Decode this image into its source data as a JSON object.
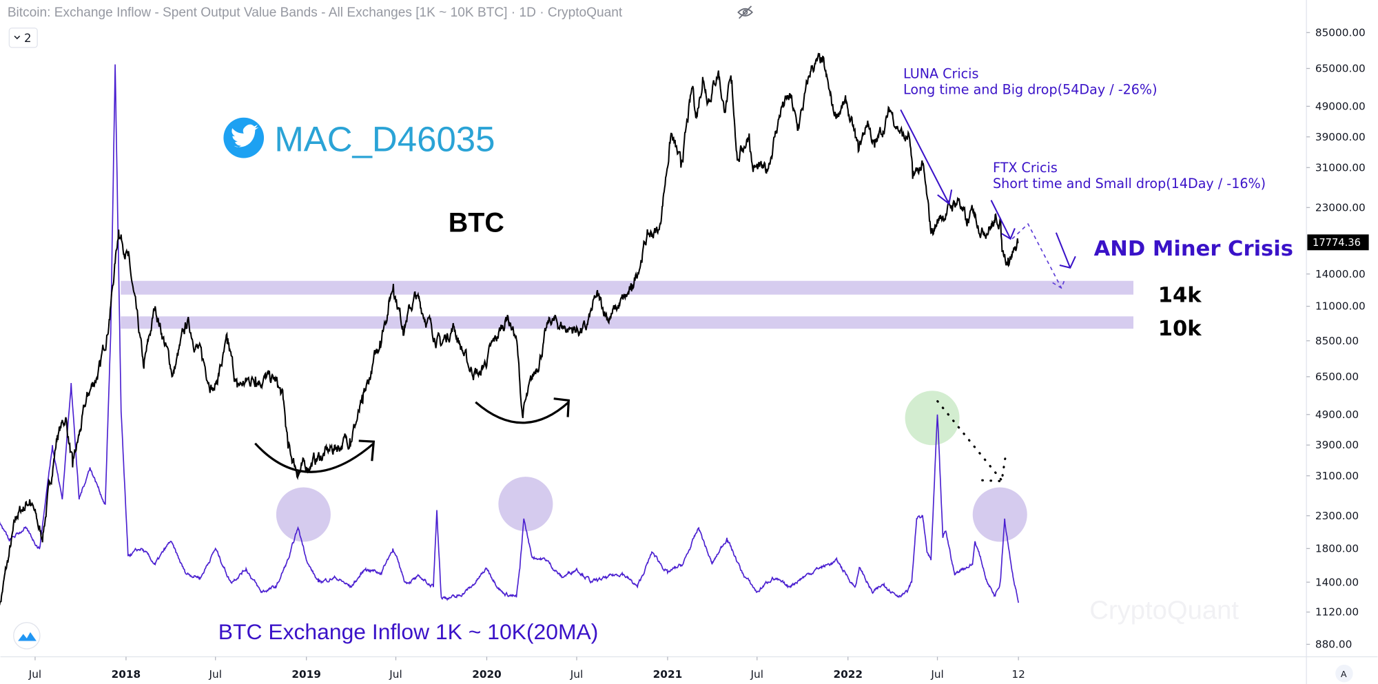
{
  "header": {
    "title": "Bitcoin: Exchange Inflow - Spent Output Value Bands - All Exchanges [1K ~ 10K BTC] · 1D · CryptoQuant",
    "collapse_label": "2",
    "hide_icon": "eye-slash-icon"
  },
  "colors": {
    "price": "#000000",
    "inflow": "#4a1fd0",
    "band": "#d6ccef",
    "annotation": "#3a12c8",
    "twitter": "#1da1f2",
    "green_highlight": "#d3edd0",
    "purple_highlight": "#d5cbee"
  },
  "chart_data": {
    "type": "line",
    "title": "Bitcoin: Exchange Inflow - Spent Output Value Bands - All Exchanges [1K ~ 10K BTC] · 1D · CryptoQuant",
    "y_scale": "log",
    "ylim": [
      700,
      110000
    ],
    "grid": false,
    "y_ticks": [
      "85000.00",
      "65000.00",
      "49000.00",
      "39000.00",
      "31000.00",
      "23000.00",
      "14000.00",
      "11000.00",
      "8500.00",
      "6500.00",
      "4900.00",
      "3900.00",
      "3100.00",
      "2300.00",
      "1800.00",
      "1400.00",
      "1120.00",
      "880.00"
    ],
    "last_price_label": "17774.36",
    "last_price": 17774.36,
    "x_ticks": [
      {
        "date": "2017-07-01",
        "label": "Jul"
      },
      {
        "date": "2018-01-01",
        "label": "2018"
      },
      {
        "date": "2018-07-01",
        "label": "Jul"
      },
      {
        "date": "2019-01-01",
        "label": "2019"
      },
      {
        "date": "2019-07-01",
        "label": "Jul"
      },
      {
        "date": "2020-01-01",
        "label": "2020"
      },
      {
        "date": "2020-07-01",
        "label": "Jul"
      },
      {
        "date": "2021-01-01",
        "label": "2021"
      },
      {
        "date": "2021-07-01",
        "label": "Jul"
      },
      {
        "date": "2022-01-01",
        "label": "2022"
      },
      {
        "date": "2022-07-01",
        "label": "Jul"
      },
      {
        "date": "2022-12-12",
        "label": "12"
      }
    ],
    "series": [
      {
        "key": "price",
        "points": [
          [
            "2017-04-20",
            1180
          ],
          [
            "2017-05-25",
            2300
          ],
          [
            "2017-06-20",
            2600
          ],
          [
            "2017-07-15",
            1950
          ],
          [
            "2017-08-15",
            4200
          ],
          [
            "2017-09-01",
            4800
          ],
          [
            "2017-09-15",
            3300
          ],
          [
            "2017-10-15",
            5600
          ],
          [
            "2017-11-10",
            7000
          ],
          [
            "2017-11-28",
            10000
          ],
          [
            "2017-12-17",
            19500
          ],
          [
            "2018-01-05",
            16000
          ],
          [
            "2018-02-06",
            6900
          ],
          [
            "2018-03-01",
            11000
          ],
          [
            "2018-04-06",
            6600
          ],
          [
            "2018-05-05",
            9800
          ],
          [
            "2018-06-28",
            5900
          ],
          [
            "2018-07-25",
            8300
          ],
          [
            "2018-08-14",
            6000
          ],
          [
            "2018-09-20",
            6500
          ],
          [
            "2018-10-30",
            6300
          ],
          [
            "2018-11-15",
            5500
          ],
          [
            "2018-11-25",
            3800
          ],
          [
            "2018-12-15",
            3200
          ],
          [
            "2019-01-20",
            3500
          ],
          [
            "2019-02-25",
            3800
          ],
          [
            "2019-03-30",
            4100
          ],
          [
            "2019-04-25",
            5300
          ],
          [
            "2019-05-30",
            8500
          ],
          [
            "2019-06-26",
            13000
          ],
          [
            "2019-07-15",
            9500
          ],
          [
            "2019-08-10",
            11800
          ],
          [
            "2019-09-30",
            8200
          ],
          [
            "2019-10-26",
            9500
          ],
          [
            "2019-11-25",
            7000
          ],
          [
            "2019-12-18",
            6600
          ],
          [
            "2020-02-12",
            10300
          ],
          [
            "2020-03-01",
            8600
          ],
          [
            "2020-03-13",
            4900
          ],
          [
            "2020-04-10",
            6900
          ],
          [
            "2020-05-08",
            9900
          ],
          [
            "2020-06-15",
            9300
          ],
          [
            "2020-07-20",
            9200
          ],
          [
            "2020-08-10",
            11800
          ],
          [
            "2020-09-05",
            10100
          ],
          [
            "2020-10-20",
            12300
          ],
          [
            "2020-11-20",
            18500
          ],
          [
            "2020-12-15",
            19500
          ],
          [
            "2021-01-08",
            40000
          ],
          [
            "2021-01-28",
            31000
          ],
          [
            "2021-02-21",
            57000
          ],
          [
            "2021-02-28",
            45000
          ],
          [
            "2021-03-13",
            61000
          ],
          [
            "2021-03-25",
            52000
          ],
          [
            "2021-04-14",
            64000
          ],
          [
            "2021-04-25",
            48000
          ],
          [
            "2021-05-10",
            58000
          ],
          [
            "2021-05-23",
            33000
          ],
          [
            "2021-06-15",
            40000
          ],
          [
            "2021-06-22",
            31000
          ],
          [
            "2021-07-20",
            29800
          ],
          [
            "2021-08-20",
            49000
          ],
          [
            "2021-09-07",
            52000
          ],
          [
            "2021-09-21",
            41000
          ],
          [
            "2021-10-20",
            66000
          ],
          [
            "2021-11-10",
            68000
          ],
          [
            "2021-12-04",
            46000
          ],
          [
            "2021-12-28",
            50000
          ],
          [
            "2022-01-22",
            35000
          ],
          [
            "2022-02-10",
            44000
          ],
          [
            "2022-02-24",
            36000
          ],
          [
            "2022-03-28",
            47500
          ],
          [
            "2022-04-25",
            38500
          ],
          [
            "2022-05-05",
            39000
          ],
          [
            "2022-05-12",
            28500
          ],
          [
            "2022-06-01",
            31500
          ],
          [
            "2022-06-18",
            19000
          ],
          [
            "2022-07-08",
            21500
          ],
          [
            "2022-08-14",
            24500
          ],
          [
            "2022-08-30",
            20000
          ],
          [
            "2022-09-12",
            22500
          ],
          [
            "2022-09-30",
            19500
          ],
          [
            "2022-10-25",
            20500
          ],
          [
            "2022-11-05",
            21300
          ],
          [
            "2022-11-09",
            16500
          ],
          [
            "2022-11-21",
            15800
          ],
          [
            "2022-12-12",
            17774.36
          ]
        ]
      },
      {
        "key": "inflow",
        "name": "BTC Exchange Inflow 1K ~ 10K(20MA)",
        "points": [
          [
            "2017-04-20",
            2200
          ],
          [
            "2017-05-10",
            1900
          ],
          [
            "2017-06-10",
            2100
          ],
          [
            "2017-07-10",
            1800
          ],
          [
            "2017-08-05",
            3900
          ],
          [
            "2017-08-25",
            2600
          ],
          [
            "2017-09-12",
            6200
          ],
          [
            "2017-09-28",
            2600
          ],
          [
            "2017-10-20",
            3300
          ],
          [
            "2017-11-20",
            2500
          ],
          [
            "2017-12-01",
            9000
          ],
          [
            "2017-12-10",
            67000
          ],
          [
            "2017-12-22",
            5000
          ],
          [
            "2018-01-05",
            1700
          ],
          [
            "2018-02-01",
            1800
          ],
          [
            "2018-03-01",
            1600
          ],
          [
            "2018-04-01",
            1900
          ],
          [
            "2018-05-01",
            1500
          ],
          [
            "2018-06-01",
            1450
          ],
          [
            "2018-07-01",
            1800
          ],
          [
            "2018-08-01",
            1400
          ],
          [
            "2018-09-01",
            1550
          ],
          [
            "2018-10-01",
            1300
          ],
          [
            "2018-11-01",
            1350
          ],
          [
            "2018-11-28",
            1700
          ],
          [
            "2018-12-15",
            2100
          ],
          [
            "2019-01-05",
            1600
          ],
          [
            "2019-01-25",
            1400
          ],
          [
            "2019-03-01",
            1450
          ],
          [
            "2019-04-01",
            1350
          ],
          [
            "2019-05-01",
            1550
          ],
          [
            "2019-06-01",
            1500
          ],
          [
            "2019-06-25",
            1800
          ],
          [
            "2019-07-20",
            1400
          ],
          [
            "2019-08-20",
            1450
          ],
          [
            "2019-09-15",
            1350
          ],
          [
            "2019-09-22",
            2400
          ],
          [
            "2019-10-01",
            1250
          ],
          [
            "2019-11-01",
            1250
          ],
          [
            "2019-12-01",
            1350
          ],
          [
            "2020-01-01",
            1550
          ],
          [
            "2020-02-01",
            1300
          ],
          [
            "2020-03-01",
            1250
          ],
          [
            "2020-03-08",
            1550
          ],
          [
            "2020-03-16",
            2250
          ],
          [
            "2020-04-01",
            1700
          ],
          [
            "2020-05-01",
            1650
          ],
          [
            "2020-06-01",
            1450
          ],
          [
            "2020-07-01",
            1550
          ],
          [
            "2020-08-01",
            1400
          ],
          [
            "2020-09-01",
            1450
          ],
          [
            "2020-10-01",
            1500
          ],
          [
            "2020-11-01",
            1350
          ],
          [
            "2020-12-01",
            1750
          ],
          [
            "2021-01-01",
            1500
          ],
          [
            "2021-02-01",
            1600
          ],
          [
            "2021-03-05",
            2100
          ],
          [
            "2021-04-01",
            1600
          ],
          [
            "2021-05-01",
            1950
          ],
          [
            "2021-06-01",
            1500
          ],
          [
            "2021-07-01",
            1300
          ],
          [
            "2021-08-01",
            1450
          ],
          [
            "2021-09-01",
            1350
          ],
          [
            "2021-10-01",
            1450
          ],
          [
            "2021-11-01",
            1550
          ],
          [
            "2021-12-10",
            1640
          ],
          [
            "2022-01-15",
            1350
          ],
          [
            "2022-01-25",
            1560
          ],
          [
            "2022-02-20",
            1290
          ],
          [
            "2022-03-15",
            1380
          ],
          [
            "2022-04-10",
            1270
          ],
          [
            "2022-05-01",
            1300
          ],
          [
            "2022-05-10",
            1400
          ],
          [
            "2022-05-20",
            2250
          ],
          [
            "2022-06-01",
            2300
          ],
          [
            "2022-06-10",
            1750
          ],
          [
            "2022-06-18",
            1650
          ],
          [
            "2022-07-01",
            4900
          ],
          [
            "2022-07-12",
            1950
          ],
          [
            "2022-07-18",
            2050
          ],
          [
            "2022-08-05",
            1480
          ],
          [
            "2022-08-20",
            1550
          ],
          [
            "2022-09-10",
            1600
          ],
          [
            "2022-09-15",
            1900
          ],
          [
            "2022-09-25",
            1700
          ],
          [
            "2022-10-10",
            1400
          ],
          [
            "2022-10-25",
            1270
          ],
          [
            "2022-11-05",
            1400
          ],
          [
            "2022-11-14",
            2250
          ],
          [
            "2022-11-30",
            1500
          ],
          [
            "2022-12-12",
            1200
          ]
        ]
      }
    ],
    "bands": [
      {
        "label": "14k",
        "range": [
          12000,
          13300
        ]
      },
      {
        "label": "10k",
        "range": [
          9300,
          10200
        ]
      }
    ]
  },
  "annotations": {
    "twitter_handle": "MAC_D46035",
    "btc_label": "BTC",
    "luna_title": "LUNA Cricis",
    "luna_desc": "Long time and Big drop(54Day / -26%)",
    "ftx_title": "FTX Cricis",
    "ftx_desc": "Short time and Small drop(14Day / -16%)",
    "miner_crisis": "AND Miner Crisis",
    "inflow_label": "BTC Exchange Inflow 1K ~ 10K(20MA)",
    "watermark": "CryptoQuant"
  },
  "footer": {
    "auto_scale_label": "A"
  }
}
